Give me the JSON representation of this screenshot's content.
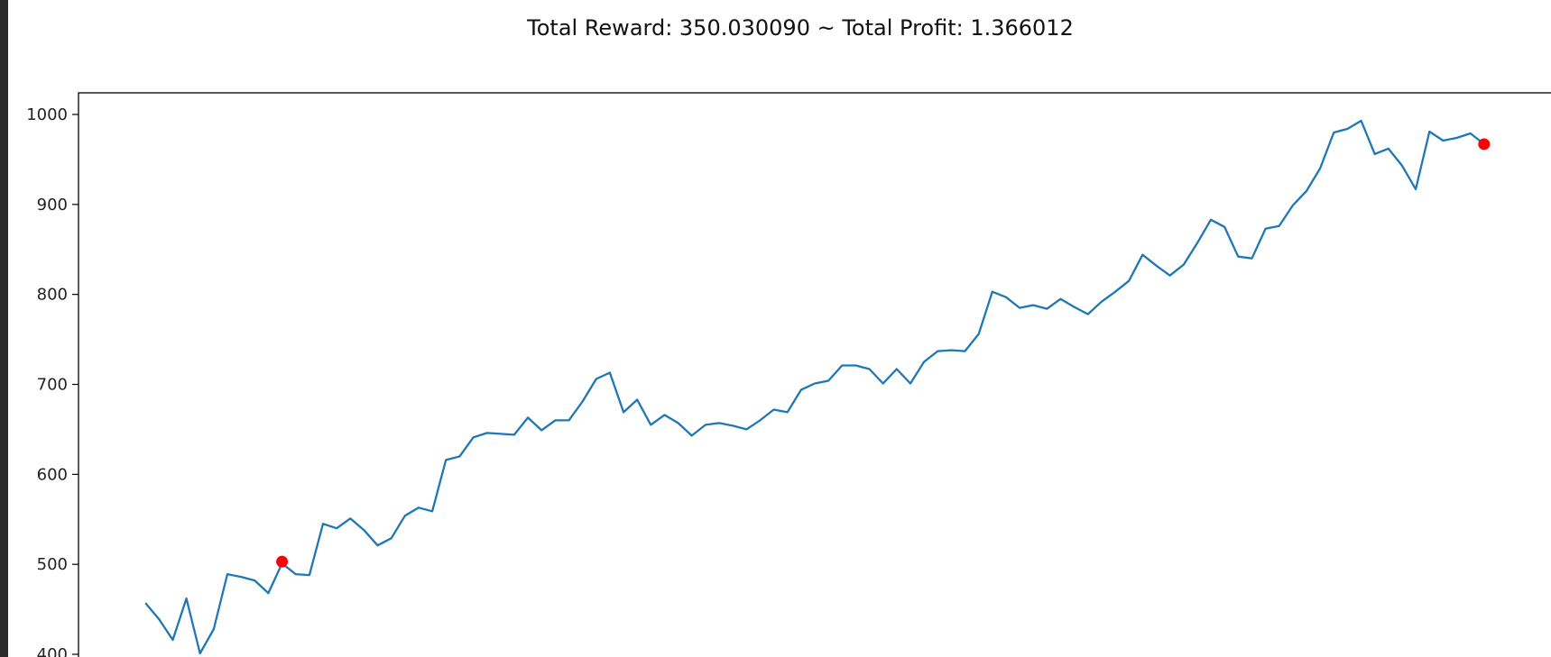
{
  "chart_data": {
    "type": "line",
    "title": "Total Reward: 350.030090 ~ Total Profit: 1.366012",
    "xlabel": "",
    "ylabel": "",
    "ylim": [
      400,
      1000
    ],
    "xlim": [
      -4.9,
      102.9
    ],
    "yticks": [
      400,
      500,
      600,
      700,
      800,
      900,
      1000
    ],
    "grid": false,
    "series": [
      {
        "color": "#1f77b4",
        "values": [
          457,
          439,
          416,
          462,
          401,
          428,
          489,
          486,
          482,
          468,
          501,
          489,
          488,
          545,
          540,
          551,
          538,
          521,
          529,
          554,
          563,
          559,
          616,
          620,
          641,
          646,
          645,
          644,
          663,
          649,
          660,
          660,
          681,
          706,
          713,
          669,
          683,
          655,
          666,
          657,
          643,
          655,
          657,
          654,
          650,
          660,
          672,
          669,
          694,
          701,
          704,
          721,
          721,
          717,
          701,
          717,
          701,
          725,
          737,
          738,
          737,
          756,
          803,
          797,
          785,
          788,
          784,
          795,
          786,
          778,
          792,
          803,
          815,
          844,
          832,
          821,
          833,
          857,
          883,
          875,
          842,
          840,
          873,
          876,
          899,
          915,
          940,
          980,
          984,
          993,
          956,
          962,
          943,
          917,
          981,
          971,
          974,
          979,
          967
        ]
      }
    ],
    "markers": [
      {
        "x": 10,
        "y": 503,
        "color": "#ff0000"
      },
      {
        "x": 98,
        "y": 967,
        "color": "#ff0000"
      }
    ]
  }
}
